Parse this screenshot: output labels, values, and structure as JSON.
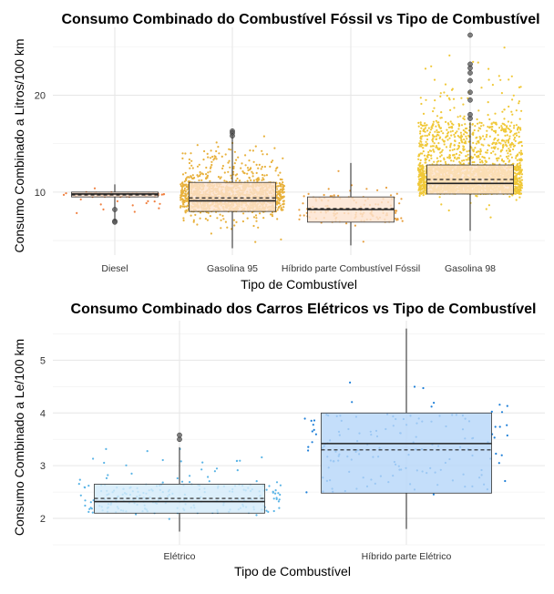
{
  "chart_data": [
    {
      "type": "boxplot",
      "title": "Consumo Combinado do Combustível Fóssil vs Tipo de Combustível",
      "xlabel": "Tipo de Combustível",
      "ylabel": "Consumo Combinado a Litros/100 km",
      "ylim": [
        3.5,
        27
      ],
      "yticks": [
        10,
        20
      ],
      "grid": true,
      "categories": [
        "Diesel",
        "Gasolina 95",
        "Híbrido parte Combustível Fóssil",
        "Gasolina 98"
      ],
      "boxes": [
        {
          "category": "Diesel",
          "min": 7.0,
          "q1": 9.5,
          "median": 9.8,
          "mean": 9.7,
          "q3": 10.0,
          "max": 10.8,
          "outliers": [
            8.2,
            7.0,
            6.9
          ],
          "color": "#f08040",
          "fill": "#fde3cf",
          "jitter": [
            [
              6.8,
              11.2
            ],
            60
          ]
        },
        {
          "category": "Gasolina 95",
          "min": 4.2,
          "q1": 8.0,
          "median": 9.1,
          "mean": 9.4,
          "q3": 11.0,
          "max": 16.0,
          "outliers": [
            16.3,
            16.1,
            15.8
          ],
          "color": "#e8b13c",
          "fill": "#fde3cf",
          "jitter": [
            [
              4.2,
              16.5
            ],
            1400
          ]
        },
        {
          "category": "Híbrido parte Combustível Fóssil",
          "min": 4.5,
          "q1": 6.9,
          "median": 8.2,
          "mean": 8.3,
          "q3": 9.5,
          "max": 13.0,
          "outliers": [],
          "color": "#e8a040",
          "fill": "#fde3cf",
          "jitter": [
            [
              4.3,
              13.0
            ],
            140
          ]
        },
        {
          "category": "Gasolina 98",
          "min": 6.0,
          "q1": 9.8,
          "median": 10.9,
          "mean": 11.3,
          "q3": 12.8,
          "max": 17.2,
          "outliers": [
            17.6,
            18.0,
            19.5,
            20.3,
            21.5,
            22.3,
            22.8,
            23.2,
            26.2
          ],
          "color": "#f0c838",
          "fill": "#fde3cf",
          "jitter": [
            [
              5.8,
              26.5
            ],
            2400
          ]
        }
      ]
    },
    {
      "type": "boxplot",
      "title": "Consumo Combinado dos Carros Elétricos vs Tipo de Combustível",
      "xlabel": "Tipo de Combustível",
      "ylabel": "Consumo Combinado a Le/100 km",
      "ylim": [
        1.5,
        5.75
      ],
      "yticks": [
        2,
        3,
        4,
        5
      ],
      "grid": true,
      "categories": [
        "Elétrico",
        "Híbrido parte Elétrico"
      ],
      "boxes": [
        {
          "category": "Elétrico",
          "min": 1.75,
          "q1": 2.1,
          "median": 2.32,
          "mean": 2.38,
          "q3": 2.65,
          "max": 3.35,
          "outliers": [
            3.5,
            3.58
          ],
          "color": "#5ab4e6",
          "fill": "#d4ecfa",
          "jitter": [
            [
              1.75,
              3.65
            ],
            220
          ]
        },
        {
          "category": "Híbrido parte Elétrico",
          "min": 1.8,
          "q1": 2.48,
          "median": 3.42,
          "mean": 3.3,
          "q3": 4.0,
          "max": 5.6,
          "outliers": [],
          "color": "#1e7fd8",
          "fill": "#b7d7f9",
          "jitter": [
            [
              1.75,
              5.6
            ],
            150
          ]
        }
      ]
    }
  ]
}
